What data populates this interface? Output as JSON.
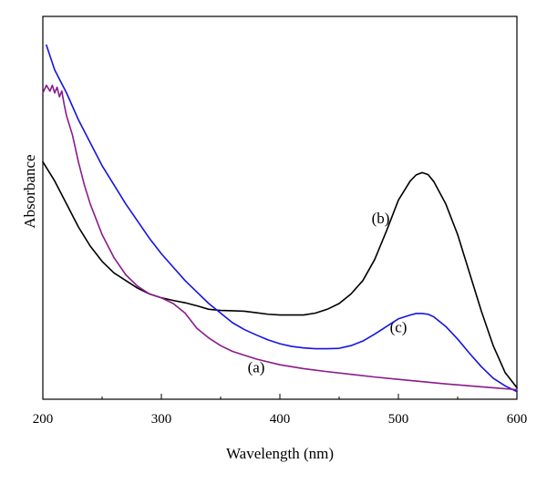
{
  "chart_data": {
    "type": "line",
    "title": "",
    "xlabel": "Wavelength (nm)",
    "ylabel": "Absorbance",
    "xlim": [
      200,
      600
    ],
    "ylim": [
      0,
      1
    ],
    "grid": false,
    "x_ticks": [
      {
        "value": 200,
        "label": "200"
      },
      {
        "value": 300,
        "label": "300"
      },
      {
        "value": 400,
        "label": "400"
      },
      {
        "value": 500,
        "label": "500"
      },
      {
        "value": 600,
        "label": "600"
      }
    ],
    "series": [
      {
        "label": "(b)",
        "color": "#000000",
        "x": [
          200,
          210,
          220,
          230,
          240,
          250,
          260,
          270,
          280,
          290,
          300,
          310,
          320,
          330,
          340,
          350,
          360,
          370,
          380,
          390,
          400,
          410,
          420,
          430,
          440,
          450,
          460,
          470,
          480,
          490,
          500,
          510,
          515,
          520,
          525,
          530,
          540,
          550,
          560,
          570,
          580,
          590,
          600
        ],
        "y": [
          0.62,
          0.57,
          0.51,
          0.45,
          0.4,
          0.36,
          0.33,
          0.31,
          0.29,
          0.275,
          0.265,
          0.258,
          0.252,
          0.244,
          0.235,
          0.232,
          0.231,
          0.23,
          0.226,
          0.222,
          0.22,
          0.22,
          0.22,
          0.225,
          0.235,
          0.25,
          0.275,
          0.31,
          0.365,
          0.44,
          0.52,
          0.57,
          0.586,
          0.592,
          0.587,
          0.568,
          0.51,
          0.43,
          0.33,
          0.23,
          0.14,
          0.07,
          0.03
        ]
      },
      {
        "label": "(c)",
        "color": "#1414e0",
        "x": [
          203,
          210,
          220,
          230,
          240,
          250,
          260,
          270,
          280,
          290,
          300,
          310,
          320,
          330,
          340,
          350,
          360,
          370,
          380,
          390,
          400,
          410,
          420,
          430,
          440,
          450,
          460,
          470,
          480,
          490,
          500,
          510,
          515,
          520,
          525,
          530,
          540,
          550,
          560,
          570,
          580,
          590,
          600
        ],
        "y": [
          0.925,
          0.86,
          0.8,
          0.73,
          0.67,
          0.61,
          0.56,
          0.51,
          0.465,
          0.42,
          0.38,
          0.345,
          0.31,
          0.28,
          0.25,
          0.225,
          0.2,
          0.182,
          0.168,
          0.155,
          0.145,
          0.138,
          0.134,
          0.132,
          0.132,
          0.133,
          0.14,
          0.152,
          0.17,
          0.19,
          0.21,
          0.22,
          0.224,
          0.224,
          0.222,
          0.215,
          0.19,
          0.157,
          0.12,
          0.085,
          0.055,
          0.035,
          0.02
        ]
      },
      {
        "label": "(a)",
        "color": "#8a1a8a",
        "x": [
          200,
          203,
          206,
          208,
          210,
          212,
          214,
          216,
          218,
          220,
          225,
          230,
          235,
          240,
          250,
          260,
          270,
          280,
          290,
          300,
          310,
          320,
          330,
          340,
          350,
          360,
          380,
          400,
          420,
          440,
          460,
          480,
          500,
          520,
          540,
          560,
          580,
          600
        ],
        "y": [
          0.8,
          0.82,
          0.805,
          0.82,
          0.8,
          0.815,
          0.79,
          0.805,
          0.77,
          0.74,
          0.69,
          0.62,
          0.56,
          0.51,
          0.43,
          0.37,
          0.325,
          0.295,
          0.275,
          0.265,
          0.25,
          0.225,
          0.185,
          0.16,
          0.14,
          0.125,
          0.105,
          0.09,
          0.08,
          0.072,
          0.065,
          0.058,
          0.052,
          0.046,
          0.04,
          0.035,
          0.03,
          0.025
        ]
      }
    ],
    "annotations": [
      {
        "text": "(b)",
        "x": 485,
        "y": 0.46
      },
      {
        "text": "(c)",
        "x": 500,
        "y": 0.175
      },
      {
        "text": "(a)",
        "x": 380,
        "y": 0.07
      }
    ]
  }
}
